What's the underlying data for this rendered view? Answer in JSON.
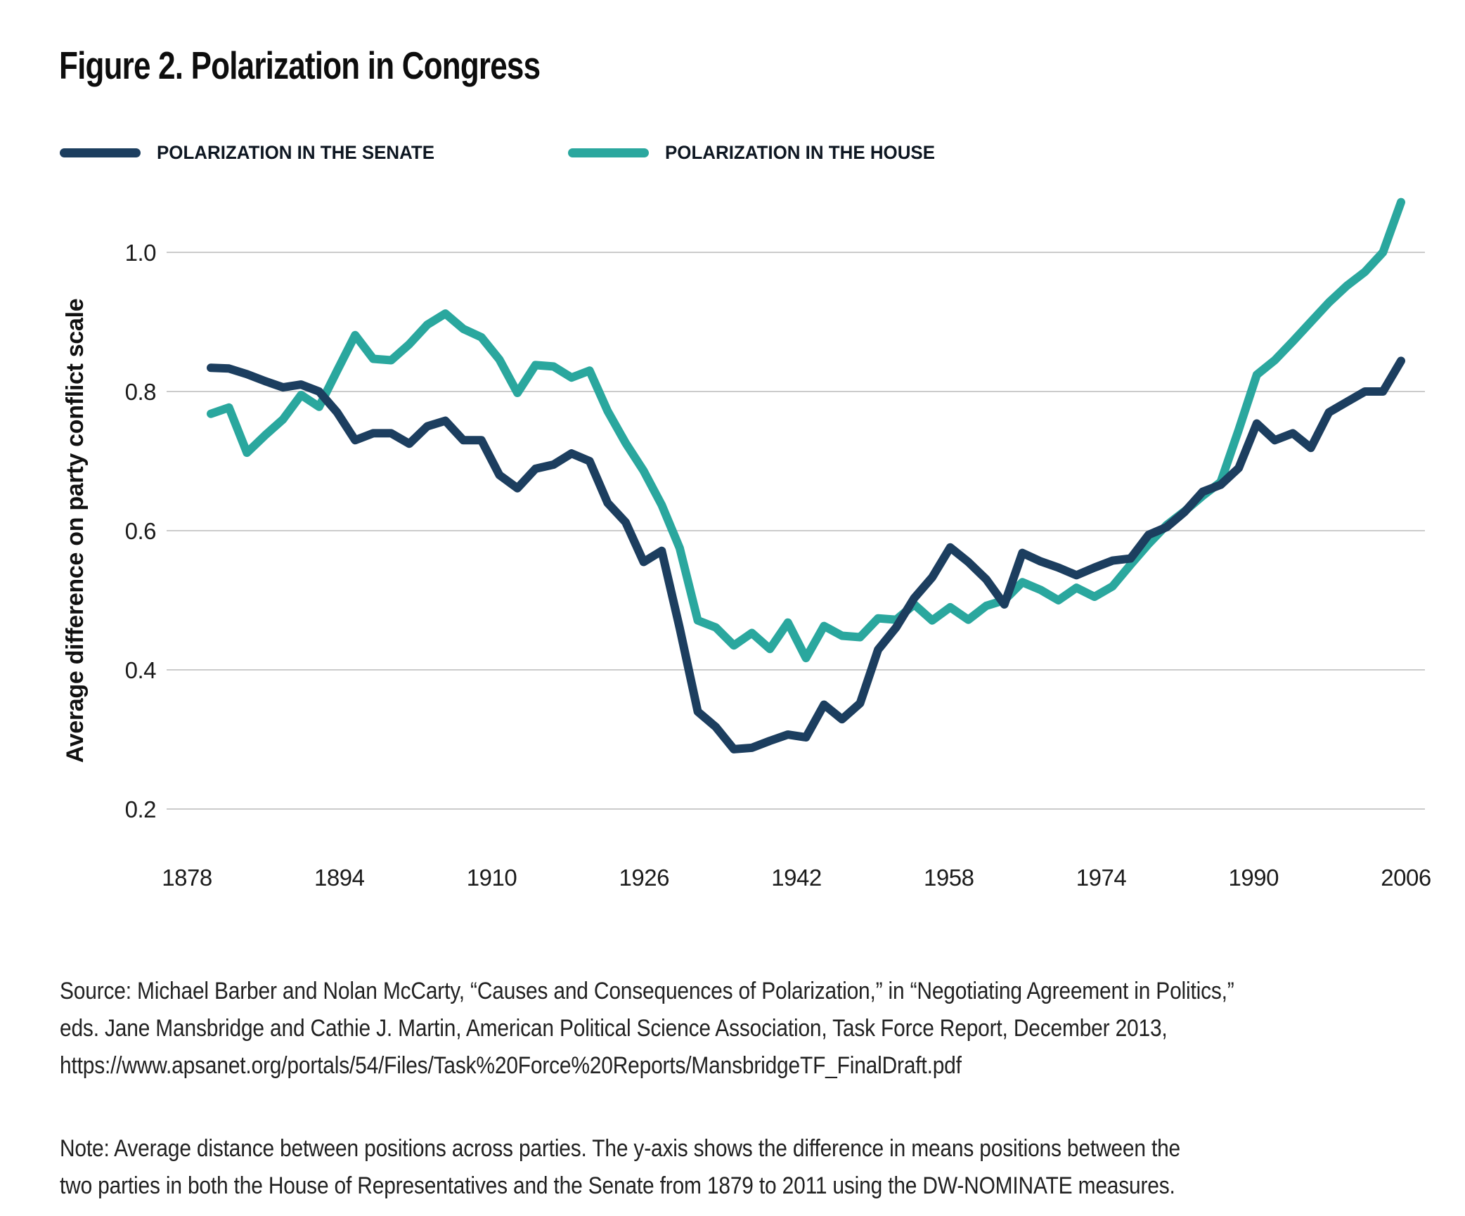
{
  "figure": {
    "title": "Figure 2. Polarization in Congress",
    "legend": [
      {
        "label": "POLARIZATION IN THE SENATE",
        "color": "#1c3e5f"
      },
      {
        "label": "POLARIZATION IN THE HOUSE",
        "color": "#2aa79e"
      }
    ],
    "source_lines": [
      "Source: Michael Barber and Nolan McCarty, “Causes and Consequences of Polarization,” in “Negotiating Agreement in Politics,”",
      "eds. Jane Mansbridge and Cathie J. Martin, American Political Science Association, Task Force Report, December 2013,",
      "https://www.apsanet.org/portals/54/Files/Task%20Force%20Reports/MansbridgeTF_FinalDraft.pdf"
    ],
    "note_lines": [
      "Note: Average distance between positions across parties. The y-axis shows the difference in means positions between the",
      "two parties in both the House of Representatives and the Senate from 1879 to 2011 using the DW-NOMINATE measures."
    ]
  },
  "chart_data": {
    "type": "line",
    "title": "Figure 2. Polarization in Congress",
    "xlabel": "",
    "ylabel": "Average difference on party conflict scale",
    "grid": "horizontal",
    "legend_position": "top-left",
    "ylim": [
      0.2,
      1.0
    ],
    "yticks": [
      "1.0",
      "0.8",
      "0.6",
      "0.4",
      "0.2"
    ],
    "xticks": [
      "1878",
      "1894",
      "1910",
      "1926",
      "1942",
      "1958",
      "1974",
      "1990",
      "2006"
    ],
    "x": [
      1879,
      1881,
      1883,
      1885,
      1887,
      1889,
      1891,
      1893,
      1895,
      1897,
      1899,
      1901,
      1903,
      1905,
      1907,
      1909,
      1911,
      1913,
      1915,
      1917,
      1919,
      1921,
      1923,
      1925,
      1927,
      1929,
      1931,
      1933,
      1935,
      1937,
      1939,
      1941,
      1943,
      1945,
      1947,
      1949,
      1951,
      1953,
      1955,
      1957,
      1959,
      1961,
      1963,
      1965,
      1967,
      1969,
      1971,
      1973,
      1975,
      1977,
      1979,
      1981,
      1983,
      1985,
      1987,
      1989,
      1991,
      1993,
      1995,
      1997,
      1999,
      2001,
      2003,
      2005,
      2007,
      2009,
      2011
    ],
    "series": [
      {
        "name": "Polarization in the Senate",
        "color": "#1c3e5f",
        "values": [
          0.834,
          0.833,
          0.825,
          0.815,
          0.806,
          0.81,
          0.8,
          0.77,
          0.73,
          0.74,
          0.74,
          0.725,
          0.75,
          0.758,
          0.73,
          0.73,
          0.68,
          0.661,
          0.689,
          0.695,
          0.711,
          0.7,
          0.64,
          0.612,
          0.555,
          0.571,
          0.46,
          0.34,
          0.318,
          0.286,
          0.288,
          0.298,
          0.307,
          0.303,
          0.35,
          0.329,
          0.352,
          0.429,
          0.461,
          0.503,
          0.533,
          0.576,
          0.555,
          0.53,
          0.494,
          0.568,
          0.556,
          0.547,
          0.536,
          0.547,
          0.557,
          0.56,
          0.594,
          0.605,
          0.627,
          0.656,
          0.666,
          0.69,
          0.754,
          0.73,
          0.74,
          0.719,
          0.77,
          0.785,
          0.8,
          0.8,
          0.844
        ]
      },
      {
        "name": "Polarization in the House",
        "color": "#2aa79e",
        "values": [
          0.768,
          0.777,
          0.712,
          0.737,
          0.76,
          0.795,
          0.778,
          0.83,
          0.881,
          0.847,
          0.845,
          0.868,
          0.896,
          0.912,
          0.89,
          0.878,
          0.846,
          0.798,
          0.838,
          0.836,
          0.82,
          0.83,
          0.772,
          0.726,
          0.686,
          0.637,
          0.575,
          0.471,
          0.461,
          0.435,
          0.453,
          0.43,
          0.468,
          0.417,
          0.463,
          0.449,
          0.447,
          0.474,
          0.472,
          0.494,
          0.471,
          0.49,
          0.472,
          0.492,
          0.5,
          0.526,
          0.515,
          0.5,
          0.518,
          0.505,
          0.52,
          0.551,
          0.581,
          0.608,
          0.628,
          0.65,
          0.67,
          0.745,
          0.824,
          0.845,
          0.872,
          0.9,
          0.928,
          0.952,
          0.972,
          1.0,
          1.072
        ]
      }
    ]
  }
}
